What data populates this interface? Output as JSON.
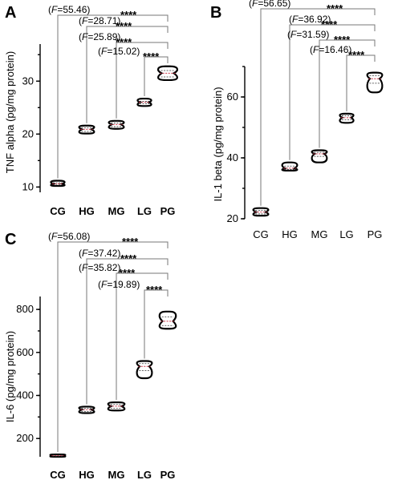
{
  "chart_data": [
    {
      "panel": "A",
      "type": "violin",
      "categories": [
        "CG",
        "HG",
        "MG",
        "LG",
        "PG"
      ],
      "ylabel": "TNF alpha (pg/mg protein)",
      "yticks": [
        "10",
        "20",
        "30"
      ],
      "ylim": [
        9,
        37
      ],
      "series": [
        {
          "category": "CG",
          "min": 10.2,
          "q1": 10.4,
          "median": 10.6,
          "q3": 10.8,
          "max": 11.2
        },
        {
          "category": "HG",
          "min": 20.1,
          "q1": 20.5,
          "median": 20.9,
          "q3": 21.2,
          "max": 21.6
        },
        {
          "category": "MG",
          "min": 21.0,
          "q1": 21.4,
          "median": 21.8,
          "q3": 22.1,
          "max": 22.5
        },
        {
          "category": "LG",
          "min": 25.3,
          "q1": 25.7,
          "median": 26.0,
          "q3": 26.2,
          "max": 26.7
        },
        {
          "category": "PG",
          "min": 30.2,
          "q1": 30.8,
          "median": 31.5,
          "q3": 32.0,
          "max": 32.8
        }
      ],
      "comparisons": [
        {
          "from": "CG",
          "to": "PG",
          "f": "55.46",
          "sig": "****"
        },
        {
          "from": "HG",
          "to": "PG",
          "f": "28.71",
          "sig": "****"
        },
        {
          "from": "MG",
          "to": "PG",
          "f": "25.89",
          "sig": "****"
        },
        {
          "from": "LG",
          "to": "PG",
          "f": "15.02",
          "sig": "****"
        }
      ]
    },
    {
      "panel": "B",
      "type": "violin",
      "categories": [
        "CG",
        "HG",
        "MG",
        "LG",
        "PG"
      ],
      "ylabel": "IL-1 beta (pg/mg protein)",
      "yticks": [
        "20",
        "40",
        "60"
      ],
      "ylim": [
        20,
        70
      ],
      "series": [
        {
          "category": "CG",
          "min": 21.0,
          "q1": 21.6,
          "median": 22.2,
          "q3": 22.8,
          "max": 23.5
        },
        {
          "category": "HG",
          "min": 35.8,
          "q1": 36.2,
          "median": 36.6,
          "q3": 37.3,
          "max": 38.5
        },
        {
          "category": "MG",
          "min": 38.5,
          "q1": 40.5,
          "median": 41.3,
          "q3": 41.8,
          "max": 42.5
        },
        {
          "category": "LG",
          "min": 51.5,
          "q1": 52.5,
          "median": 53.2,
          "q3": 53.8,
          "max": 54.5
        },
        {
          "category": "PG",
          "min": 61.5,
          "q1": 64.5,
          "median": 66.0,
          "q3": 67.0,
          "max": 68.0
        }
      ],
      "comparisons": [
        {
          "from": "CG",
          "to": "PG",
          "f": "56.65",
          "sig": "****"
        },
        {
          "from": "HG",
          "to": "PG",
          "f": "36.92",
          "sig": "****"
        },
        {
          "from": "MG",
          "to": "PG",
          "f": "31.59",
          "sig": "****"
        },
        {
          "from": "LG",
          "to": "PG",
          "f": "16.46",
          "sig": "****"
        }
      ]
    },
    {
      "panel": "C",
      "type": "violin",
      "categories": [
        "CG",
        "HG",
        "MG",
        "LG",
        "PG"
      ],
      "ylabel": "IL-6 (pg/mg protein)",
      "yticks": [
        "200",
        "400",
        "600",
        "800"
      ],
      "ylim": [
        115,
        860
      ],
      "series": [
        {
          "category": "CG",
          "min": 115,
          "q1": 117,
          "median": 120,
          "q3": 123,
          "max": 126
        },
        {
          "category": "HG",
          "min": 318,
          "q1": 326,
          "median": 334,
          "q3": 340,
          "max": 348
        },
        {
          "category": "MG",
          "min": 330,
          "q1": 340,
          "median": 350,
          "q3": 358,
          "max": 368
        },
        {
          "category": "LG",
          "min": 480,
          "q1": 515,
          "median": 535,
          "q3": 548,
          "max": 560
        },
        {
          "category": "PG",
          "min": 710,
          "q1": 725,
          "median": 745,
          "q3": 765,
          "max": 790
        }
      ],
      "comparisons": [
        {
          "from": "CG",
          "to": "PG",
          "f": "56.08",
          "sig": "****"
        },
        {
          "from": "HG",
          "to": "PG",
          "f": "37.42",
          "sig": "****"
        },
        {
          "from": "MG",
          "to": "PG",
          "f": "35.82",
          "sig": "****"
        },
        {
          "from": "LG",
          "to": "PG",
          "f": "19.89",
          "sig": "****"
        }
      ]
    }
  ]
}
